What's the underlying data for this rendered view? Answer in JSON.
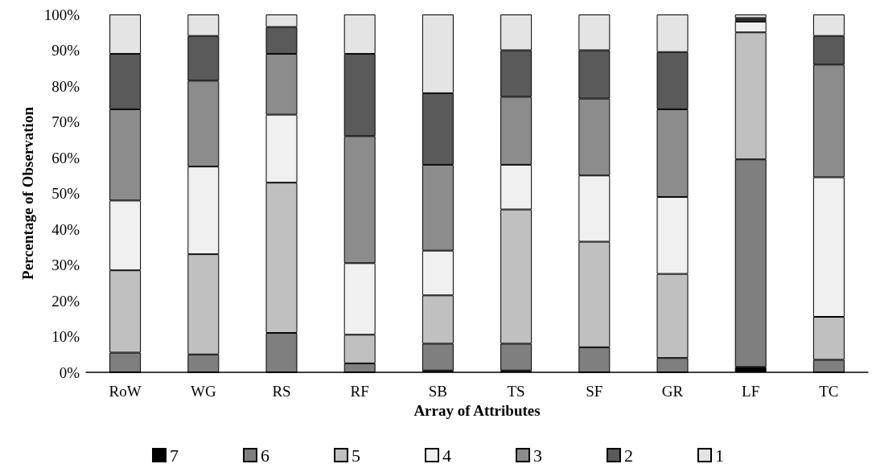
{
  "chart_data": {
    "type": "bar",
    "stacked": true,
    "xlabel": "Array of Attributes",
    "ylabel": "Percentage of Observation",
    "categories": [
      "RoW",
      "WG",
      "RS",
      "RF",
      "SB",
      "TS",
      "SF",
      "GR",
      "LF",
      "TC"
    ],
    "series": [
      {
        "name": "7",
        "color": "#000000",
        "values": [
          0,
          0,
          0,
          0,
          0.5,
          0.5,
          0,
          0,
          1.5,
          0
        ]
      },
      {
        "name": "6",
        "color": "#7f7f7f",
        "values": [
          5.5,
          5,
          11,
          2.5,
          7.5,
          7.5,
          7,
          4,
          58,
          3.5
        ]
      },
      {
        "name": "5",
        "color": "#c0c0c0",
        "values": [
          23,
          28,
          42,
          8,
          13.5,
          37.5,
          29.5,
          23.5,
          35.5,
          12
        ]
      },
      {
        "name": "4",
        "color": "#f0f0f0",
        "values": [
          19.5,
          24.5,
          19,
          20,
          12.5,
          12.5,
          18.5,
          21.5,
          3,
          39
        ]
      },
      {
        "name": "3",
        "color": "#8c8c8c",
        "values": [
          25.5,
          24,
          17,
          35.5,
          24,
          19,
          21.5,
          24.5,
          0.5,
          31.5
        ]
      },
      {
        "name": "2",
        "color": "#5a5a5a",
        "values": [
          15.5,
          12.5,
          7.5,
          23,
          20,
          13,
          13.5,
          16,
          0.5,
          8
        ]
      },
      {
        "name": "1",
        "color": "#e4e4e4",
        "values": [
          11,
          6,
          3.5,
          11,
          22,
          10,
          10,
          10.5,
          1,
          6
        ]
      }
    ],
    "ylim": [
      0,
      100
    ],
    "yticks": [
      {
        "value": 0,
        "label": "0%"
      },
      {
        "value": 10,
        "label": "10%"
      },
      {
        "value": 20,
        "label": "20%"
      },
      {
        "value": 30,
        "label": "30%"
      },
      {
        "value": 40,
        "label": "40%"
      },
      {
        "value": 50,
        "label": "50%"
      },
      {
        "value": 60,
        "label": "60%"
      },
      {
        "value": 70,
        "label": "70%"
      },
      {
        "value": 80,
        "label": "80%"
      },
      {
        "value": 90,
        "label": "90%"
      },
      {
        "value": 100,
        "label": "100%"
      }
    ],
    "grid": false,
    "legend": "bottom"
  }
}
